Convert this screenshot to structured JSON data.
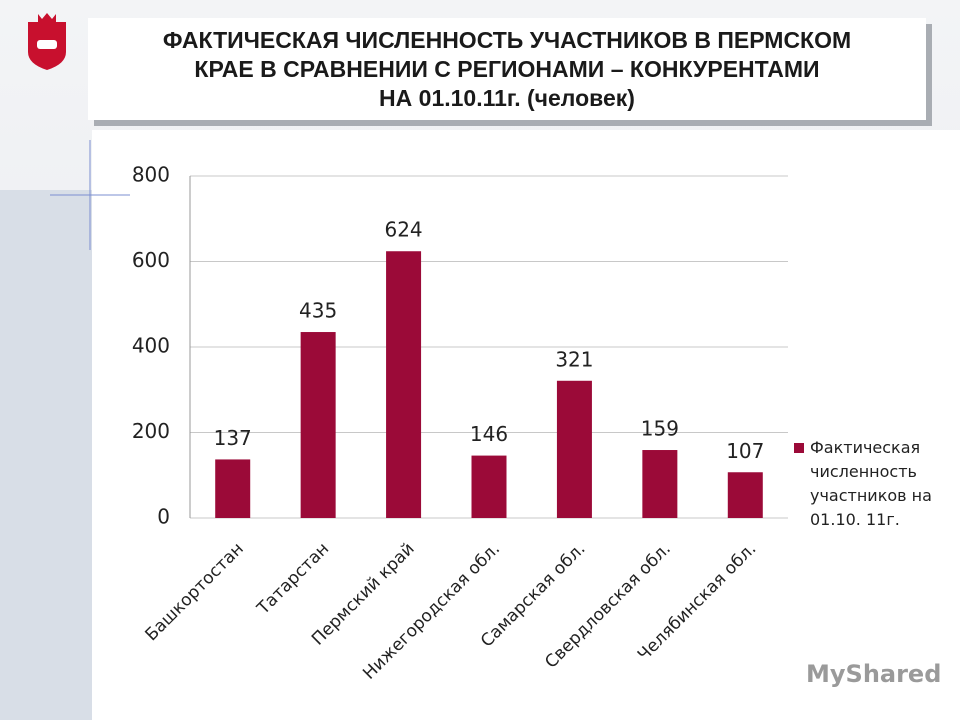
{
  "chart_data": {
    "type": "bar",
    "title": [
      "ФАКТИЧЕСКАЯ ЧИСЛЕННОСТЬ УЧАСТНИКОВ  В ПЕРМСКОМ",
      "КРАЕ В СРАВНЕНИИ С РЕГИОНАМИ – КОНКУРЕНТАМИ",
      "НА 01.10.11г. (человек)"
    ],
    "categories": [
      "Башкортостан",
      "Татарстан",
      "Пермский край",
      "Нижегородская обл.",
      "Самарская обл.",
      "Свердловская обл.",
      "Челябинская обл."
    ],
    "series": [
      {
        "name": "Фактическая численность участников на 01.10. 11г.",
        "color": "#9b0a38",
        "values": [
          137,
          435,
          624,
          146,
          321,
          159,
          107
        ]
      }
    ],
    "ylim": [
      0,
      800
    ],
    "yticks": [
      0,
      200,
      400,
      600,
      800
    ],
    "grid": true,
    "legend": "right"
  },
  "watermark": "MyShared"
}
